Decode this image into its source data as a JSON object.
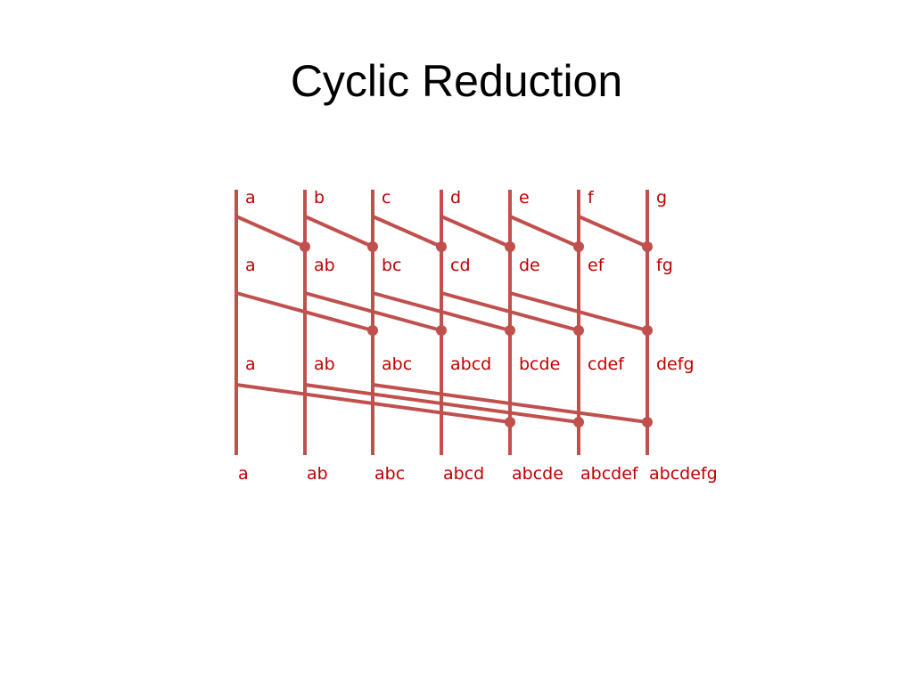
{
  "title": "Cyclic Reduction",
  "colors": {
    "line": "#c0504d",
    "label": "#c00000",
    "title": "#000000"
  },
  "rows": [
    [
      "a",
      "b",
      "c",
      "d",
      "e",
      "f",
      "g"
    ],
    [
      "a",
      "ab",
      "bc",
      "cd",
      "de",
      "ef",
      "fg"
    ],
    [
      "a",
      "ab",
      "abc",
      "abcd",
      "bcde",
      "cdef",
      "defg"
    ],
    [
      "a",
      "ab",
      "abc",
      "abcd",
      "abcde",
      "abcdef",
      "abcdefg"
    ]
  ],
  "stages": [
    {
      "stride": 1,
      "sources": [
        0,
        1,
        2,
        3,
        4,
        5
      ]
    },
    {
      "stride": 2,
      "sources": [
        0,
        1,
        2,
        3,
        4
      ]
    },
    {
      "stride": 4,
      "sources": [
        0,
        1,
        2
      ]
    }
  ]
}
